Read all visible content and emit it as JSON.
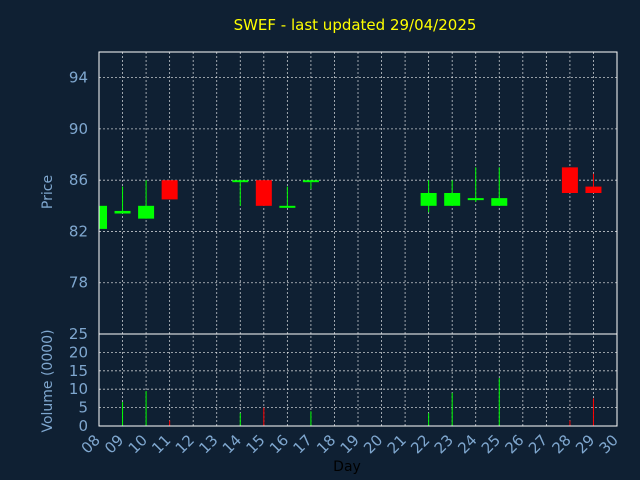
{
  "chart_data": {
    "type": "candlestick",
    "title": "SWEF - last updated 29/04/2025",
    "xlabel": "Day",
    "x_ticks": [
      "08",
      "09",
      "10",
      "11",
      "12",
      "13",
      "14",
      "15",
      "16",
      "17",
      "18",
      "19",
      "20",
      "21",
      "22",
      "23",
      "24",
      "25",
      "26",
      "27",
      "28",
      "29",
      "30"
    ],
    "price_panel": {
      "ylabel": "Price",
      "ylim": [
        74,
        96
      ],
      "yticks": [
        78,
        82,
        86,
        90,
        94
      ],
      "candles": [
        {
          "day": "08",
          "open": 82.2,
          "high": 84.0,
          "low": 82.2,
          "close": 84.0
        },
        {
          "day": "09",
          "open": 83.4,
          "high": 85.5,
          "low": 83.4,
          "close": 83.6
        },
        {
          "day": "10",
          "open": 83.0,
          "high": 86.0,
          "low": 83.0,
          "close": 84.0
        },
        {
          "day": "11",
          "open": 86.0,
          "high": 86.0,
          "low": 84.5,
          "close": 84.5
        },
        {
          "day": "14",
          "open": 85.9,
          "high": 86.0,
          "low": 84.0,
          "close": 86.0
        },
        {
          "day": "15",
          "open": 86.0,
          "high": 86.0,
          "low": 84.0,
          "close": 84.0
        },
        {
          "day": "16",
          "open": 83.9,
          "high": 85.5,
          "low": 83.9,
          "close": 84.0
        },
        {
          "day": "17",
          "open": 85.9,
          "high": 86.0,
          "low": 85.3,
          "close": 86.0
        },
        {
          "day": "22",
          "open": 84.0,
          "high": 86.0,
          "low": 83.5,
          "close": 85.0
        },
        {
          "day": "23",
          "open": 84.0,
          "high": 86.0,
          "low": 84.0,
          "close": 85.0
        },
        {
          "day": "24",
          "open": 84.5,
          "high": 87.0,
          "low": 84.3,
          "close": 84.6
        },
        {
          "day": "25",
          "open": 84.0,
          "high": 87.0,
          "low": 84.0,
          "close": 84.6
        },
        {
          "day": "28",
          "open": 87.0,
          "high": 87.0,
          "low": 85.0,
          "close": 85.0
        },
        {
          "day": "29",
          "open": 85.5,
          "high": 86.5,
          "low": 85.0,
          "close": 85.0
        }
      ]
    },
    "volume_panel": {
      "ylabel": "Volume (0000)",
      "ylim": [
        0,
        25
      ],
      "yticks": [
        0,
        5,
        10,
        15,
        20,
        25
      ],
      "bars": [
        {
          "day": "09",
          "value": 6.5,
          "direction": "up"
        },
        {
          "day": "10",
          "value": 9.5,
          "direction": "up"
        },
        {
          "day": "11",
          "value": 1.5,
          "direction": "down"
        },
        {
          "day": "14",
          "value": 3.5,
          "direction": "up"
        },
        {
          "day": "15",
          "value": 5.0,
          "direction": "down"
        },
        {
          "day": "17",
          "value": 4.0,
          "direction": "up"
        },
        {
          "day": "22",
          "value": 3.5,
          "direction": "up"
        },
        {
          "day": "23",
          "value": 9.0,
          "direction": "up"
        },
        {
          "day": "25",
          "value": 13.0,
          "direction": "up"
        },
        {
          "day": "28",
          "value": 1.5,
          "direction": "down"
        },
        {
          "day": "29",
          "value": 7.5,
          "direction": "down"
        }
      ]
    },
    "grid": true,
    "colors": {
      "background": "#0f2033",
      "up": "#00ff00",
      "down": "#ff0000",
      "title": "#ffff00",
      "axis_text": "#7fa7cf",
      "grid": "#ffffff"
    }
  }
}
